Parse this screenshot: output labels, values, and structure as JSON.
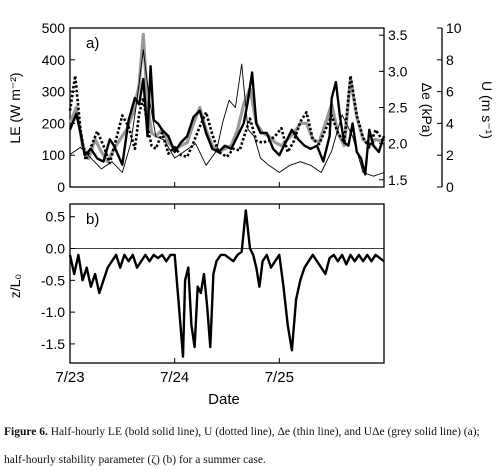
{
  "chart_data": [
    {
      "panel_label": "a)",
      "type": "line",
      "xlabel": "",
      "x_domain_days": [
        0,
        3.0
      ],
      "axes": {
        "left": {
          "label": "LE (W m⁻²)",
          "ylim": [
            0,
            500
          ],
          "ticks": [
            "0",
            "100",
            "200",
            "300",
            "400",
            "500"
          ]
        },
        "right_inner": {
          "label": "Δe (kPa)",
          "ylim": [
            1.4,
            3.6
          ],
          "ticks": [
            "1.5",
            "2.0",
            "2.5",
            "3.0",
            "3.5"
          ]
        },
        "right_outer": {
          "label": "U (m s⁻¹)",
          "ylim": [
            0,
            10
          ],
          "ticks": [
            "0",
            "2",
            "4",
            "6",
            "8",
            "10"
          ]
        }
      },
      "series": [
        {
          "style": "bold-solid",
          "axis": "left",
          "x": [
            0,
            0.06,
            0.1,
            0.14,
            0.2,
            0.26,
            0.32,
            0.38,
            0.42,
            0.5,
            0.56,
            0.62,
            0.66,
            0.7,
            0.74,
            0.77,
            0.8,
            0.84,
            0.88,
            0.94,
            1.0,
            1.06,
            1.12,
            1.18,
            1.24,
            1.3,
            1.36,
            1.42,
            1.48,
            1.54,
            1.6,
            1.66,
            1.7,
            1.74,
            1.78,
            1.82,
            1.88,
            1.94,
            2.0,
            2.06,
            2.12,
            2.18,
            2.24,
            2.3,
            2.36,
            2.42,
            2.48,
            2.5,
            2.54,
            2.58,
            2.62,
            2.66,
            2.7,
            2.74,
            2.78,
            2.82,
            2.86,
            2.9,
            2.95,
            3.0
          ],
          "y": [
            180,
            230,
            170,
            100,
            120,
            90,
            80,
            150,
            130,
            70,
            210,
            280,
            260,
            340,
            160,
            380,
            210,
            200,
            180,
            160,
            110,
            140,
            160,
            220,
            240,
            170,
            120,
            110,
            130,
            120,
            160,
            200,
            270,
            360,
            200,
            170,
            170,
            120,
            100,
            140,
            180,
            150,
            130,
            120,
            130,
            80,
            160,
            280,
            330,
            220,
            140,
            130,
            200,
            110,
            90,
            40,
            180,
            130,
            110,
            160
          ]
        },
        {
          "style": "dotted",
          "axis": "right_outer",
          "x": [
            0,
            0.05,
            0.1,
            0.15,
            0.2,
            0.26,
            0.32,
            0.38,
            0.44,
            0.5,
            0.56,
            0.62,
            0.66,
            0.7,
            0.74,
            0.78,
            0.82,
            0.88,
            0.94,
            1.0,
            1.06,
            1.12,
            1.18,
            1.24,
            1.3,
            1.36,
            1.42,
            1.5,
            1.56,
            1.62,
            1.66,
            1.72,
            1.78,
            1.84,
            1.9,
            1.96,
            2.02,
            2.08,
            2.14,
            2.2,
            2.26,
            2.32,
            2.38,
            2.44,
            2.5,
            2.56,
            2.62,
            2.68,
            2.74,
            2.8,
            2.86,
            2.92,
            3.0
          ],
          "y": [
            4.8,
            7.0,
            3.6,
            1.7,
            2.5,
            3.5,
            2.6,
            1.5,
            3.0,
            4.5,
            3.8,
            2.4,
            4.6,
            5.6,
            3.8,
            2.6,
            2.4,
            3.4,
            2.1,
            2.5,
            2.0,
            1.9,
            2.8,
            3.8,
            4.7,
            3.3,
            2.2,
            1.9,
            2.4,
            2.3,
            3.1,
            4.3,
            2.9,
            2.8,
            2.9,
            3.2,
            3.7,
            2.2,
            2.9,
            4.1,
            4.7,
            3.0,
            2.7,
            3.6,
            4.5,
            3.4,
            2.8,
            7.0,
            4.5,
            3.1,
            2.5,
            3.6,
            2.8
          ]
        },
        {
          "style": "thin-solid",
          "axis": "right_inner",
          "x": [
            0,
            0.1,
            0.2,
            0.3,
            0.4,
            0.5,
            0.58,
            0.64,
            0.7,
            0.76,
            0.82,
            0.9,
            1.0,
            1.1,
            1.2,
            1.3,
            1.4,
            1.46,
            1.52,
            1.58,
            1.64,
            1.7,
            1.76,
            1.82,
            1.9,
            2.0,
            2.1,
            2.2,
            2.3,
            2.4,
            2.5,
            2.6,
            2.7,
            2.8,
            2.9,
            3.0
          ],
          "y": [
            1.85,
            1.95,
            1.8,
            1.65,
            1.75,
            1.6,
            2.0,
            2.6,
            3.3,
            2.6,
            2.1,
            2.05,
            1.8,
            1.9,
            2.0,
            1.7,
            1.9,
            2.3,
            2.6,
            2.5,
            3.1,
            2.2,
            2.1,
            1.8,
            1.7,
            1.6,
            1.7,
            1.75,
            1.7,
            1.6,
            1.9,
            2.4,
            2.1,
            1.6,
            1.55,
            1.6
          ]
        },
        {
          "style": "grey-solid",
          "axis": "left",
          "x": [
            0,
            0.06,
            0.12,
            0.18,
            0.24,
            0.3,
            0.36,
            0.42,
            0.48,
            0.54,
            0.6,
            0.66,
            0.7,
            0.74,
            0.78,
            0.82,
            0.88,
            0.94,
            1.0,
            1.06,
            1.12,
            1.18,
            1.24,
            1.3,
            1.36,
            1.42,
            1.48,
            1.54,
            1.6,
            1.66,
            1.72,
            1.78,
            1.84,
            1.9,
            1.96,
            2.02,
            2.08,
            2.14,
            2.2,
            2.26,
            2.32,
            2.38,
            2.44,
            2.5,
            2.56,
            2.62,
            2.68,
            2.74,
            2.8,
            2.86,
            2.92,
            3.0
          ],
          "y": [
            200,
            250,
            130,
            90,
            150,
            110,
            80,
            120,
            150,
            180,
            230,
            320,
            480,
            260,
            170,
            160,
            180,
            140,
            120,
            130,
            140,
            200,
            250,
            180,
            130,
            110,
            120,
            130,
            180,
            260,
            310,
            200,
            170,
            160,
            140,
            130,
            150,
            170,
            200,
            200,
            150,
            140,
            200,
            260,
            170,
            130,
            340,
            220,
            150,
            130,
            150,
            140
          ]
        }
      ]
    },
    {
      "panel_label": "b)",
      "type": "line",
      "xlabel": "Date",
      "ylabel": "z/L₀",
      "ylim": [
        -1.8,
        0.7
      ],
      "yticks": [
        "0.5",
        "0.0",
        "-0.5",
        "-1.0",
        "-1.5"
      ],
      "xticks": [
        {
          "x": 0,
          "label": "7/23"
        },
        {
          "x": 1,
          "label": "7/24"
        },
        {
          "x": 2,
          "label": "7/25"
        }
      ],
      "zero_line": true,
      "series": [
        {
          "style": "bold-solid",
          "x": [
            0,
            0.04,
            0.08,
            0.12,
            0.16,
            0.2,
            0.24,
            0.28,
            0.32,
            0.36,
            0.4,
            0.44,
            0.48,
            0.52,
            0.56,
            0.6,
            0.64,
            0.68,
            0.72,
            0.76,
            0.8,
            0.84,
            0.88,
            0.92,
            0.96,
            1.0,
            1.04,
            1.08,
            1.1,
            1.13,
            1.16,
            1.19,
            1.22,
            1.25,
            1.28,
            1.31,
            1.34,
            1.37,
            1.4,
            1.44,
            1.48,
            1.52,
            1.56,
            1.6,
            1.64,
            1.68,
            1.72,
            1.75,
            1.78,
            1.81,
            1.84,
            1.88,
            1.92,
            1.96,
            2.0,
            2.04,
            2.08,
            2.12,
            2.16,
            2.2,
            2.24,
            2.28,
            2.32,
            2.36,
            2.4,
            2.44,
            2.48,
            2.52,
            2.56,
            2.6,
            2.64,
            2.68,
            2.72,
            2.76,
            2.8,
            2.84,
            2.88,
            2.92,
            2.96,
            3.0
          ],
          "y": [
            -0.1,
            -0.4,
            -0.1,
            -0.5,
            -0.3,
            -0.6,
            -0.4,
            -0.7,
            -0.5,
            -0.3,
            -0.2,
            -0.1,
            -0.3,
            -0.1,
            -0.2,
            -0.1,
            -0.3,
            -0.2,
            -0.1,
            -0.2,
            -0.1,
            -0.15,
            -0.1,
            -0.2,
            -0.1,
            -0.1,
            -0.9,
            -1.7,
            -0.5,
            -0.3,
            -1.2,
            -1.55,
            -0.6,
            -0.7,
            -0.4,
            -0.9,
            -1.55,
            -0.4,
            -0.2,
            -0.1,
            -0.1,
            -0.15,
            -0.2,
            -0.1,
            -0.05,
            0.6,
            0.0,
            -0.1,
            -0.3,
            -0.6,
            -0.2,
            -0.1,
            -0.3,
            -0.2,
            -0.1,
            -0.6,
            -1.2,
            -1.6,
            -0.8,
            -0.5,
            -0.3,
            -0.2,
            -0.1,
            -0.2,
            -0.3,
            -0.4,
            -0.15,
            -0.1,
            -0.2,
            -0.1,
            -0.25,
            -0.1,
            -0.2,
            -0.1,
            -0.2,
            -0.1,
            -0.2,
            -0.1,
            -0.15,
            -0.2
          ]
        }
      ]
    }
  ],
  "caption": {
    "lead": "Figure 6.",
    "text": " Half-hourly LE (bold solid line), U (dotted line), Δe (thin line), and UΔe (grey solid line) (a); half-hourly stability parameter (ζ) (b) for a summer case."
  }
}
